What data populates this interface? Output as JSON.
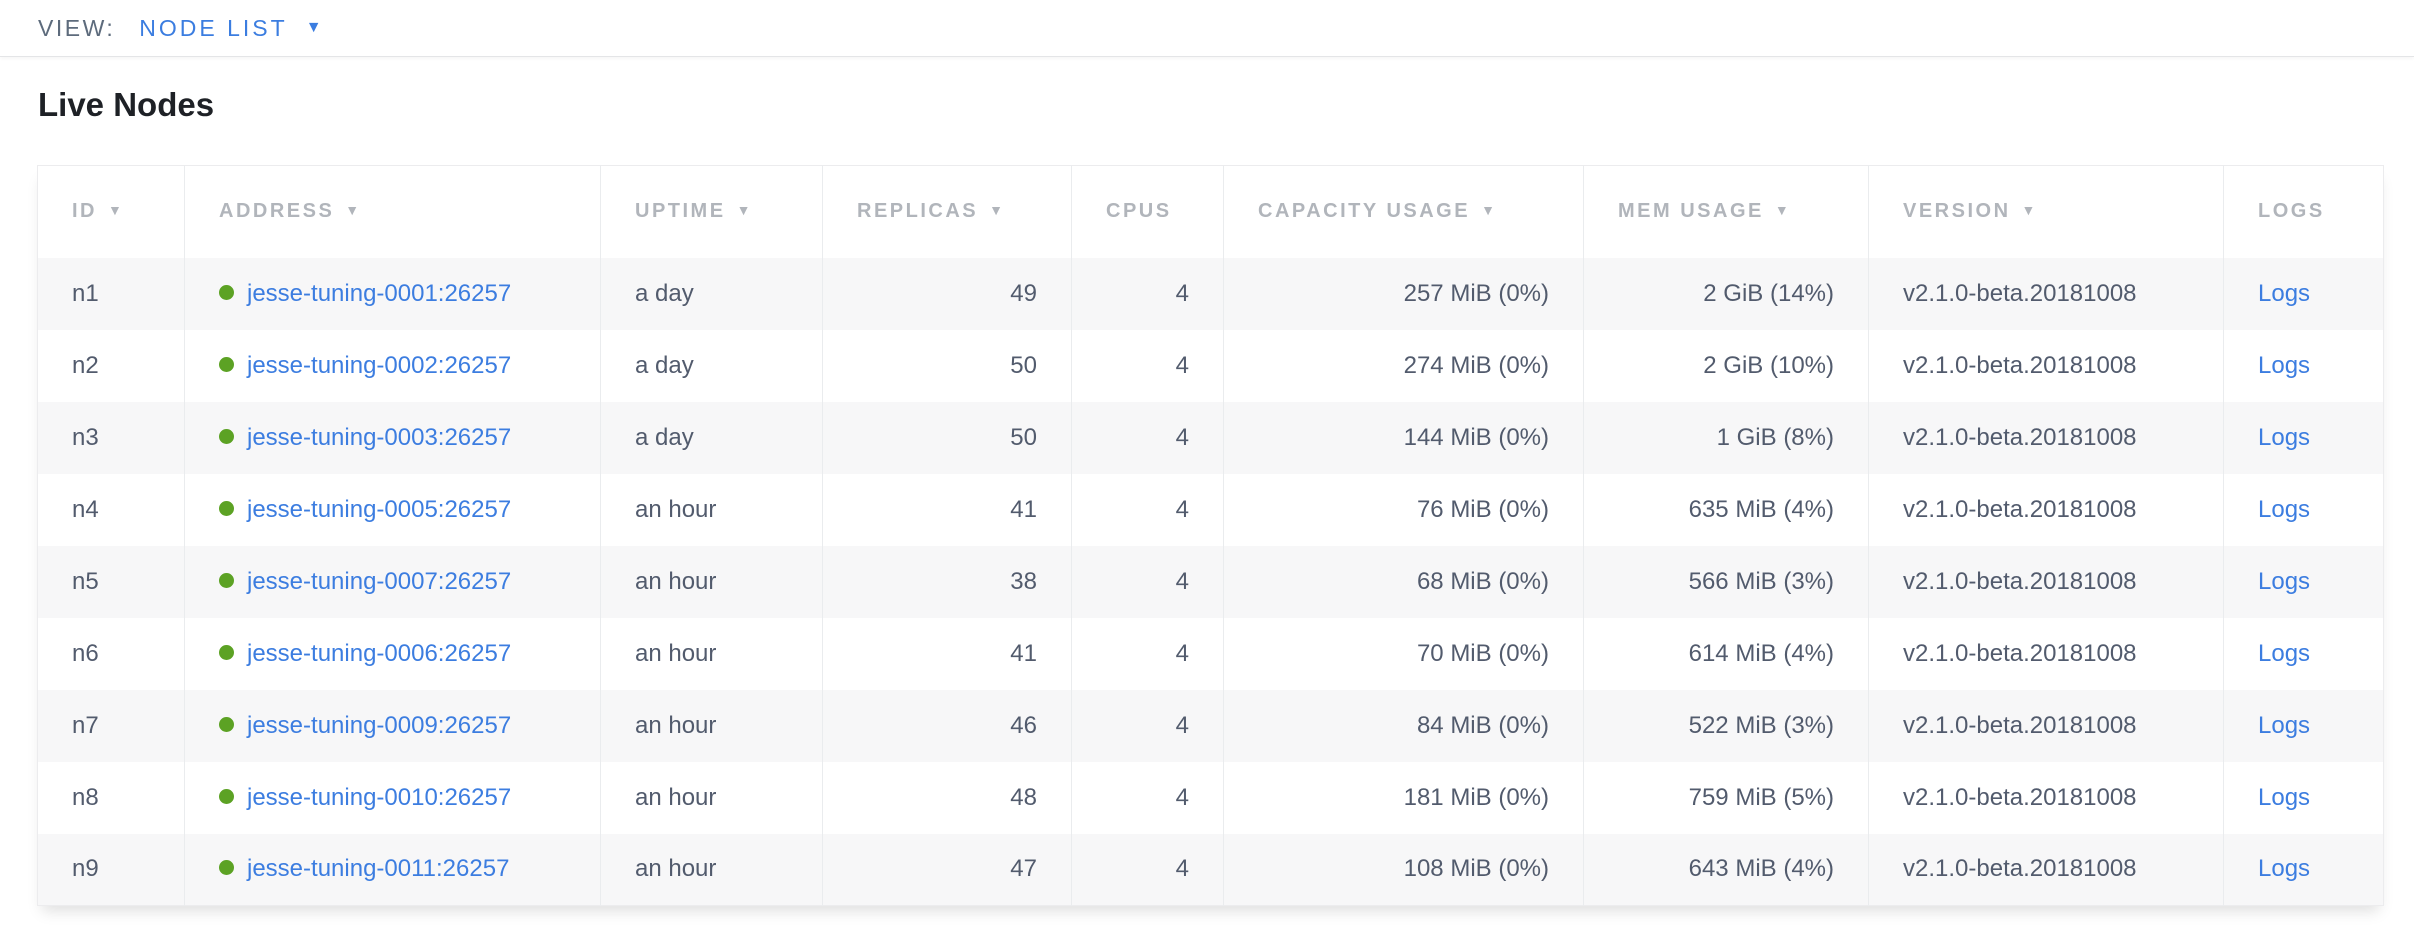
{
  "view_bar": {
    "label": "VIEW:",
    "selected": "NODE LIST",
    "caret_icon": "▼"
  },
  "page": {
    "title": "Live Nodes"
  },
  "icons": {
    "sort_caret": "▼",
    "node_status_healthy": "green-dot"
  },
  "colors": {
    "accent_blue": "#3b7de0",
    "link_blue": "#3c7de0",
    "healthy_green": "#5ca224",
    "header_gray": "#b1b5bb",
    "cell_text": "#525b6d",
    "row_alt_bg": "#f7f7f8",
    "title_text": "#1e2126"
  },
  "table": {
    "columns": [
      {
        "key": "id",
        "label": "ID",
        "sortable": true,
        "align": "left"
      },
      {
        "key": "address",
        "label": "ADDRESS",
        "sortable": true,
        "align": "left"
      },
      {
        "key": "uptime",
        "label": "UPTIME",
        "sortable": true,
        "align": "left"
      },
      {
        "key": "replicas",
        "label": "REPLICAS",
        "sortable": true,
        "align": "right"
      },
      {
        "key": "cpus",
        "label": "CPUS",
        "sortable": false,
        "align": "right"
      },
      {
        "key": "capacity",
        "label": "CAPACITY USAGE",
        "sortable": true,
        "align": "right"
      },
      {
        "key": "mem",
        "label": "MEM USAGE",
        "sortable": true,
        "align": "right"
      },
      {
        "key": "version",
        "label": "VERSION",
        "sortable": true,
        "align": "left"
      },
      {
        "key": "logs",
        "label": "LOGS",
        "sortable": false,
        "align": "left"
      }
    ],
    "rows": [
      {
        "id": "n1",
        "address": "jesse-tuning-0001:26257",
        "status": "healthy",
        "uptime": "a day",
        "replicas": "49",
        "cpus": "4",
        "capacity": "257 MiB (0%)",
        "mem": "2 GiB (14%)",
        "version": "v2.1.0-beta.20181008",
        "logs": "Logs"
      },
      {
        "id": "n2",
        "address": "jesse-tuning-0002:26257",
        "status": "healthy",
        "uptime": "a day",
        "replicas": "50",
        "cpus": "4",
        "capacity": "274 MiB (0%)",
        "mem": "2 GiB (10%)",
        "version": "v2.1.0-beta.20181008",
        "logs": "Logs"
      },
      {
        "id": "n3",
        "address": "jesse-tuning-0003:26257",
        "status": "healthy",
        "uptime": "a day",
        "replicas": "50",
        "cpus": "4",
        "capacity": "144 MiB (0%)",
        "mem": "1 GiB (8%)",
        "version": "v2.1.0-beta.20181008",
        "logs": "Logs"
      },
      {
        "id": "n4",
        "address": "jesse-tuning-0005:26257",
        "status": "healthy",
        "uptime": "an hour",
        "replicas": "41",
        "cpus": "4",
        "capacity": "76 MiB (0%)",
        "mem": "635 MiB (4%)",
        "version": "v2.1.0-beta.20181008",
        "logs": "Logs"
      },
      {
        "id": "n5",
        "address": "jesse-tuning-0007:26257",
        "status": "healthy",
        "uptime": "an hour",
        "replicas": "38",
        "cpus": "4",
        "capacity": "68 MiB (0%)",
        "mem": "566 MiB (3%)",
        "version": "v2.1.0-beta.20181008",
        "logs": "Logs"
      },
      {
        "id": "n6",
        "address": "jesse-tuning-0006:26257",
        "status": "healthy",
        "uptime": "an hour",
        "replicas": "41",
        "cpus": "4",
        "capacity": "70 MiB (0%)",
        "mem": "614 MiB (4%)",
        "version": "v2.1.0-beta.20181008",
        "logs": "Logs"
      },
      {
        "id": "n7",
        "address": "jesse-tuning-0009:26257",
        "status": "healthy",
        "uptime": "an hour",
        "replicas": "46",
        "cpus": "4",
        "capacity": "84 MiB (0%)",
        "mem": "522 MiB (3%)",
        "version": "v2.1.0-beta.20181008",
        "logs": "Logs"
      },
      {
        "id": "n8",
        "address": "jesse-tuning-0010:26257",
        "status": "healthy",
        "uptime": "an hour",
        "replicas": "48",
        "cpus": "4",
        "capacity": "181 MiB (0%)",
        "mem": "759 MiB (5%)",
        "version": "v2.1.0-beta.20181008",
        "logs": "Logs"
      },
      {
        "id": "n9",
        "address": "jesse-tuning-0011:26257",
        "status": "healthy",
        "uptime": "an hour",
        "replicas": "47",
        "cpus": "4",
        "capacity": "108 MiB (0%)",
        "mem": "643 MiB (4%)",
        "version": "v2.1.0-beta.20181008",
        "logs": "Logs"
      }
    ]
  }
}
